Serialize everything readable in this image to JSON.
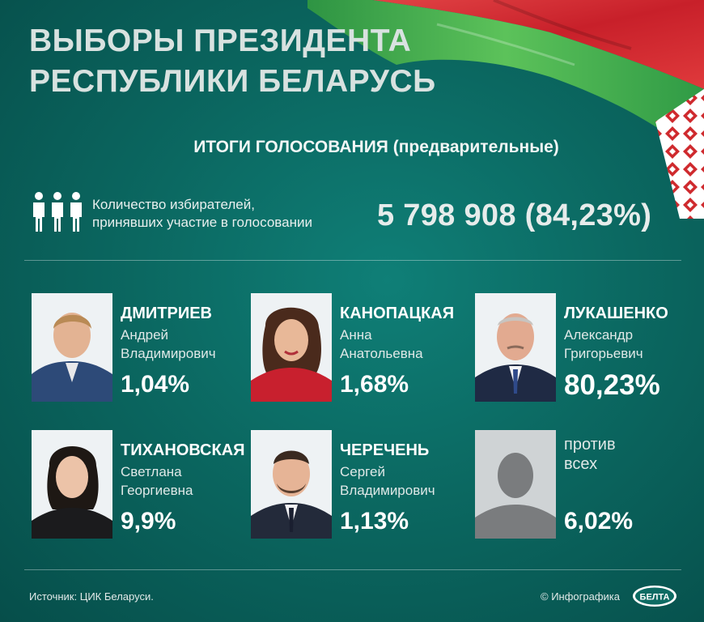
{
  "header": {
    "title_line1": "ВЫБОРЫ ПРЕЗИДЕНТА",
    "title_line2": "РЕСПУБЛИКИ БЕЛАРУСЬ",
    "subtitle": "ИТОГИ ГОЛОСОВАНИЯ (предварительные)"
  },
  "turnout": {
    "label_line1": "Количество избирателей,",
    "label_line2": "принявших участие в голосовании",
    "value": "5 798 908 (84,23%)"
  },
  "candidates": [
    {
      "surname": "ДМИТРИЕВ",
      "first": "Андрей",
      "patronymic": "Владимирович",
      "percent": "1,04%"
    },
    {
      "surname": "КАНОПАЦКАЯ",
      "first": "Анна",
      "patronymic": "Анатольевна",
      "percent": "1,68%"
    },
    {
      "surname": "ЛУКАШЕНКО",
      "first": "Александр",
      "patronymic": "Григорьевич",
      "percent": "80,23%"
    },
    {
      "surname": "ТИХАНОВСКАЯ",
      "first": "Светлана",
      "patronymic": "Георгиевна",
      "percent": "9,9%"
    },
    {
      "surname": "ЧЕРЕЧЕНЬ",
      "first": "Сергей",
      "patronymic": "Владимирович",
      "percent": "1,13%"
    }
  ],
  "against": {
    "line1": "против",
    "line2": "всех",
    "percent": "6,02%"
  },
  "footer": {
    "source": "Источник: ЦИК Беларуси.",
    "credit": "© Инфографика",
    "logo_text": "БЕЛТА"
  },
  "colors": {
    "flag_red": "#d42a2e",
    "flag_green": "#3aa64a",
    "background": "#0b6861"
  }
}
